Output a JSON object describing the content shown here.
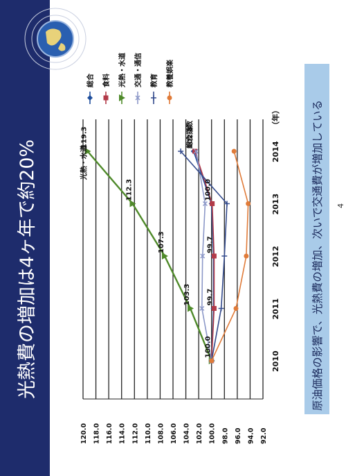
{
  "slide": {
    "title": "光熱費の増加は4ヶ年で約20%",
    "caption": "原油価格の影響で、光熱費の増加、次いで交通費が増加している",
    "page_number": "4",
    "colors": {
      "title_bar": "#1e2c6c",
      "caption_bg": "#a9cbe9",
      "caption_text": "#1b2a5c"
    }
  },
  "chart_data": {
    "type": "line",
    "x": [
      2010,
      2011,
      2012,
      2013,
      2014
    ],
    "x_tick_labels": [
      "2010",
      "2011",
      "2012",
      "2013",
      "2014"
    ],
    "x_unit_label": "（年）",
    "y_ticks": [
      "120.0",
      "118.0",
      "116.0",
      "114.0",
      "112.0",
      "110.0",
      "108.0",
      "106.0",
      "104.0",
      "102.0",
      "100.0",
      "98.0",
      "96.0",
      "94.0",
      "92.0"
    ],
    "ylim": [
      92,
      120
    ],
    "grid": true,
    "legend_position": "right",
    "series": [
      {
        "name": "総合",
        "color": "#1f4e9c",
        "marker": "diamond",
        "values": [
          100.0,
          99.7,
          99.7,
          100.0,
          102.8
        ]
      },
      {
        "name": "食料",
        "color": "#b23a48",
        "marker": "square",
        "values": [
          100.0,
          99.6,
          99.6,
          99.9,
          102.6
        ]
      },
      {
        "name": "光熱・水道",
        "color": "#4f8a2a",
        "marker": "triangle",
        "values": [
          100.0,
          103.3,
          107.3,
          112.3,
          119.3
        ]
      },
      {
        "name": "交通・通信",
        "color": "#8c98c8",
        "marker": "x",
        "values": [
          100.0,
          101.5,
          101.4,
          101.0,
          102.4
        ]
      },
      {
        "name": "教育",
        "color": "#334a8c",
        "marker": "plus",
        "values": [
          100.0,
          98.5,
          98.0,
          97.6,
          104.8
        ]
      },
      {
        "name": "教養娯楽",
        "color": "#e07b39",
        "marker": "circle",
        "values": [
          100.0,
          96.2,
          94.6,
          94.3,
          96.5
        ]
      }
    ],
    "annotations": [
      {
        "text": "光熱・水道",
        "x": 2013.4,
        "y": 119.3
      },
      {
        "text": "119.3",
        "x": 2014,
        "y": 119.3
      },
      {
        "text": "112.3",
        "x": 2013,
        "y": 112.3
      },
      {
        "text": "107.3",
        "x": 2012,
        "y": 107.3
      },
      {
        "text": "103.3",
        "x": 2011,
        "y": 103.3
      },
      {
        "text": "100.0",
        "x": 2010,
        "y": 100.0
      },
      {
        "text": "99.7",
        "x": 2011,
        "y": 99.7
      },
      {
        "text": "99.7",
        "x": 2012,
        "y": 99.7
      },
      {
        "text": "100.0",
        "x": 2013,
        "y": 100.0
      },
      {
        "text": "102.8",
        "x": 2014,
        "y": 102.8
      },
      {
        "text": "総合指数",
        "x": 2014,
        "y": 102.8
      }
    ]
  }
}
